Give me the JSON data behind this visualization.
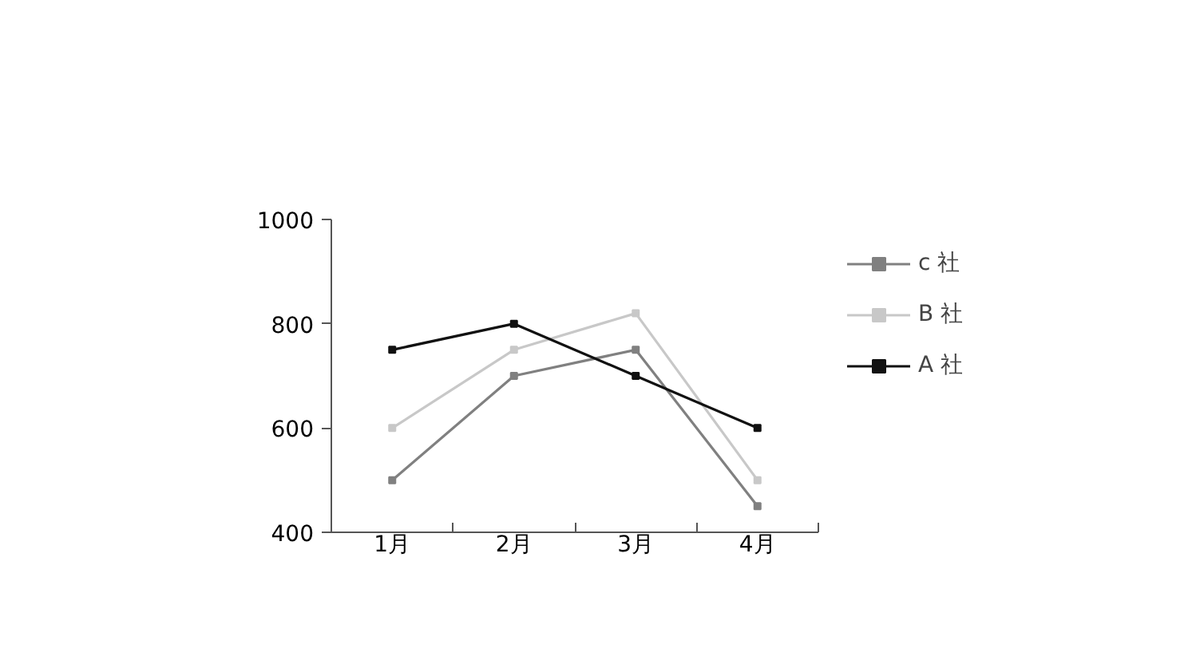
{
  "chart_data": {
    "type": "line",
    "categories": [
      "1月",
      "2月",
      "3月",
      "4月"
    ],
    "series": [
      {
        "name": "c 社",
        "color": "#808080",
        "values": [
          500,
          700,
          750,
          450
        ]
      },
      {
        "name": "B 社",
        "color": "#c8c8c8",
        "values": [
          600,
          750,
          820,
          500
        ]
      },
      {
        "name": "A 社",
        "color": "#111111",
        "values": [
          750,
          800,
          700,
          600
        ]
      }
    ],
    "ylim": [
      400,
      1000
    ],
    "yticks": [
      400,
      600,
      800,
      1000
    ],
    "grid": false,
    "legend": "right",
    "marker": "square",
    "line_style": "solid"
  }
}
